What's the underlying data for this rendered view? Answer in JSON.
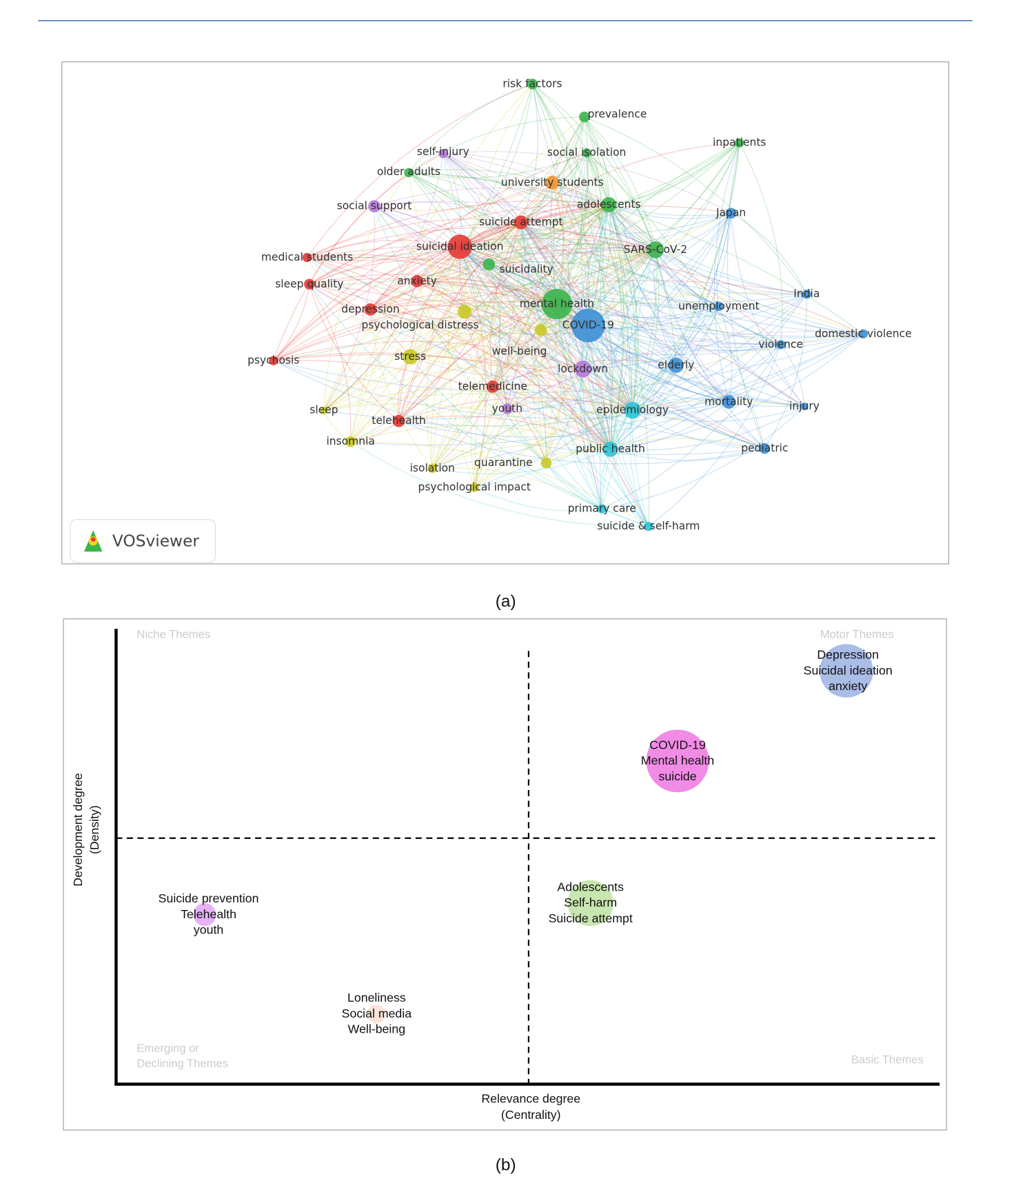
{
  "figure_a": {
    "nodes": [
      {
        "label": "risk factors",
        "color": "#3cb44b"
      },
      {
        "label": "prevalence",
        "color": "#3cb44b"
      },
      {
        "label": "inpatients",
        "color": "#3cb44b"
      },
      {
        "label": "self-injury",
        "color": "#b57ad6"
      },
      {
        "label": "social isolation",
        "color": "#3cb44b"
      },
      {
        "label": "older adults",
        "color": "#3cb44b"
      },
      {
        "label": "university students",
        "color": "#f39530"
      },
      {
        "label": "adolescents",
        "color": "#3cb44b"
      },
      {
        "label": "social support",
        "color": "#b57ad6"
      },
      {
        "label": "Japan",
        "color": "#3d8fd6"
      },
      {
        "label": "suicide attempt",
        "color": "#e53935"
      },
      {
        "label": "suicidal ideation",
        "color": "#e53935"
      },
      {
        "label": "SARS-CoV-2",
        "color": "#3cb44b"
      },
      {
        "label": "medical students",
        "color": "#e53935"
      },
      {
        "label": "suicidality",
        "color": "#3cb44b"
      },
      {
        "label": "sleep quality",
        "color": "#e53935"
      },
      {
        "label": "anxiety",
        "color": "#e53935"
      },
      {
        "label": "India",
        "color": "#3d8fd6"
      },
      {
        "label": "mental health",
        "color": "#3cb44b"
      },
      {
        "label": "unemployment",
        "color": "#3d8fd6"
      },
      {
        "label": "depression",
        "color": "#e53935"
      },
      {
        "label": "psychological distress",
        "color": "#c9c927"
      },
      {
        "label": "COVID-19",
        "color": "#3d8fd6"
      },
      {
        "label": "domestic violence",
        "color": "#3d8fd6"
      },
      {
        "label": "violence",
        "color": "#3d8fd6"
      },
      {
        "label": "psychosis",
        "color": "#e53935"
      },
      {
        "label": "stress",
        "color": "#c9c927"
      },
      {
        "label": "well-being",
        "color": "#c9c927"
      },
      {
        "label": "lockdown",
        "color": "#b57ad6"
      },
      {
        "label": "elderly",
        "color": "#3d8fd6"
      },
      {
        "label": "telemedicine",
        "color": "#e53935"
      },
      {
        "label": "mortality",
        "color": "#3d8fd6"
      },
      {
        "label": "injury",
        "color": "#3d8fd6"
      },
      {
        "label": "sleep",
        "color": "#c9c927"
      },
      {
        "label": "youth",
        "color": "#b57ad6"
      },
      {
        "label": "epidemiology",
        "color": "#2ec4d6"
      },
      {
        "label": "telehealth",
        "color": "#e53935"
      },
      {
        "label": "insomnia",
        "color": "#c9c927"
      },
      {
        "label": "public health",
        "color": "#2ec4d6"
      },
      {
        "label": "pediatric",
        "color": "#3d8fd6"
      },
      {
        "label": "isolation",
        "color": "#c9c927"
      },
      {
        "label": "quarantine",
        "color": "#c9c927"
      },
      {
        "label": "psychological impact",
        "color": "#c9c927"
      },
      {
        "label": "primary care",
        "color": "#2ec4d6"
      },
      {
        "label": "suicide & self-harm",
        "color": "#2ec4d6"
      }
    ],
    "logo": "VOSviewer",
    "caption": "(a)"
  },
  "figure_b": {
    "quadrants": [
      "Niche Themes",
      "Motor Themes",
      [
        "Emerging or",
        "Declining Themes"
      ],
      "Basic Themes"
    ],
    "y_axis_label": [
      "Development degree",
      "(Density)"
    ],
    "x_axis_label": [
      "Relevance degree",
      "(Centrality)"
    ],
    "clusters": [
      {
        "lines": [
          "Depression",
          "Suicidal ideation",
          "anxiety"
        ],
        "color": "#a9bde6"
      },
      {
        "lines": [
          "COVID-19",
          "Mental health",
          "suicide"
        ],
        "color": "#f28be6"
      },
      {
        "lines": [
          "Adolescents",
          "Self-harm",
          "Suicide attempt"
        ],
        "color": "#c8e6b0"
      },
      {
        "lines": [
          "Suicide prevention",
          "Telehealth",
          "youth"
        ],
        "color": "#e5b3f5"
      },
      {
        "lines": [
          "Loneliness",
          "Social media",
          "Well-being"
        ],
        "color": "#fbe3d8"
      }
    ],
    "caption": "(b)"
  }
}
